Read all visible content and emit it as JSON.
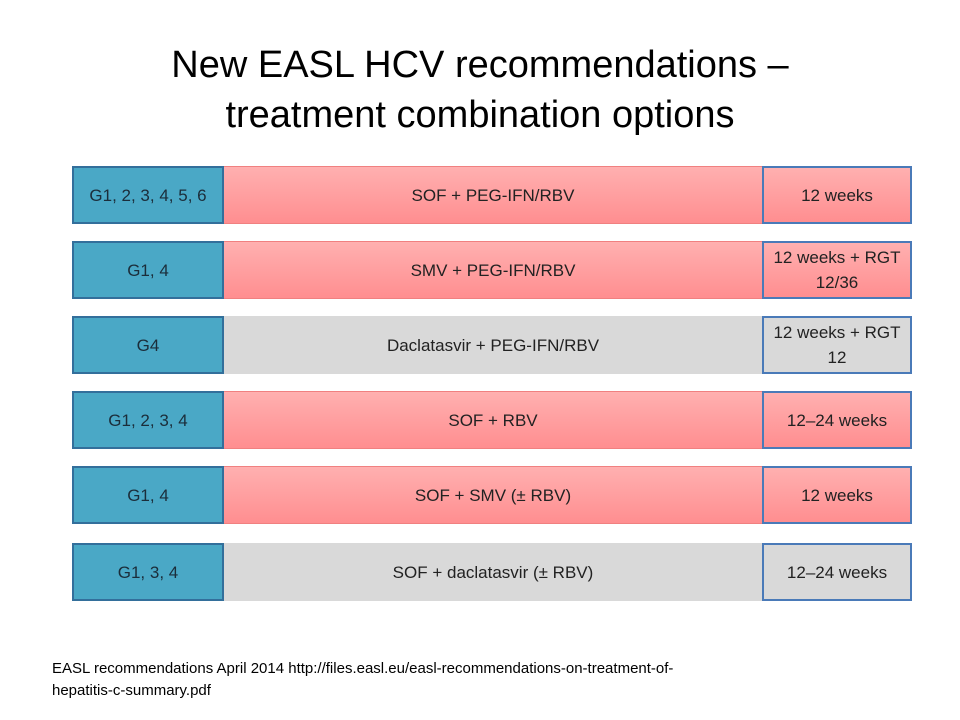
{
  "header": {
    "title": [
      "New EASL HCV recommendations –",
      "treatment combination options"
    ]
  },
  "rows": [
    {
      "genotype": "G1, 2, 3, 4, 5, 6",
      "regimen": "SOF + PEG-IFN/RBV",
      "duration": "12 weeks"
    },
    {
      "genotype": "G1, 4",
      "regimen": "SMV + PEG-IFN/RBV",
      "duration": "12 weeks + RGT 12/36"
    },
    {
      "genotype": "G4",
      "regimen": "Daclatasvir + PEG-IFN/RBV",
      "duration": "12 weeks + RGT 12"
    },
    {
      "genotype": "G1, 2, 3, 4",
      "regimen": "SOF + RBV",
      "duration": "12–24 weeks"
    },
    {
      "genotype": "G1, 4",
      "regimen": "SOF + SMV (± RBV)",
      "duration": "12 weeks"
    },
    {
      "genotype": "G1, 3, 4",
      "regimen": "SOF + daclatasvir (± RBV)",
      "duration": "12–24 weeks"
    }
  ],
  "footnote": [
    "EASL recommendations April 2014 http://files.easl.eu/easl-recommendations-on-treatment-of-",
    "hepatitis-c-summary.pdf"
  ]
}
